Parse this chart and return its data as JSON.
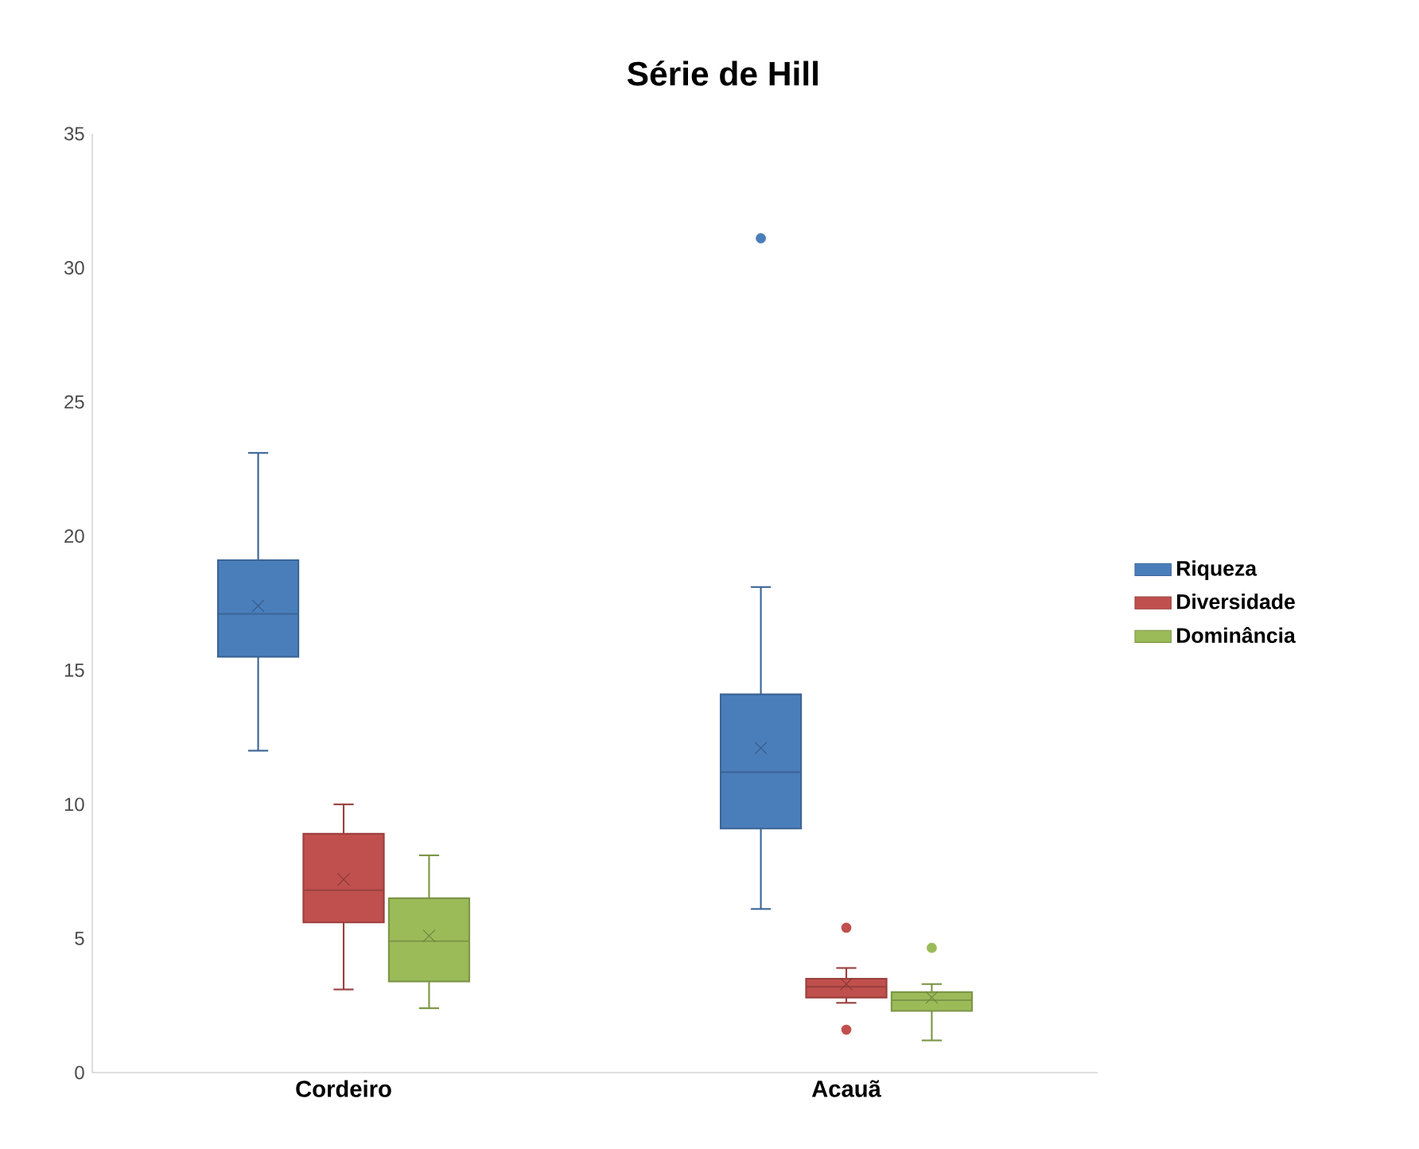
{
  "chart_data": {
    "type": "box",
    "title": "Série de Hill",
    "categories": [
      "Cordeiro",
      "Acauã"
    ],
    "series": [
      {
        "name": "Riqueza",
        "color": "#4a7ebb",
        "boxes": [
          {
            "low": 12,
            "q1": 15.5,
            "median": 17.1,
            "q3": 19.1,
            "high": 23.1,
            "mean": 17.4
          },
          {
            "low": 6.1,
            "q1": 9.1,
            "median": 11.2,
            "q3": 14.1,
            "high": 18.1,
            "mean": 12.1,
            "outliers": [
              31.1
            ]
          }
        ]
      },
      {
        "name": "Diversidade",
        "color": "#c0504d",
        "boxes": [
          {
            "low": 3.1,
            "q1": 5.6,
            "median": 6.8,
            "q3": 8.9,
            "high": 10,
            "mean": 7.2
          },
          {
            "low": 2.6,
            "q1": 2.8,
            "median": 3.2,
            "q3": 3.5,
            "high": 3.9,
            "mean": 3.3,
            "outliers": [
              5.4,
              1.6
            ]
          }
        ]
      },
      {
        "name": "Dominância",
        "color": "#9bbb59",
        "boxes": [
          {
            "low": 2.4,
            "q1": 3.4,
            "median": 4.9,
            "q3": 6.5,
            "high": 8.1,
            "mean": 5.1
          },
          {
            "low": 1.2,
            "q1": 2.3,
            "median": 2.7,
            "q3": 3.0,
            "high": 3.3,
            "mean": 2.8,
            "outliers": [
              4.65
            ]
          }
        ]
      }
    ],
    "ylim": [
      0,
      35
    ],
    "yticks": [
      0,
      5,
      10,
      15,
      20,
      25,
      30,
      35
    ],
    "grid": false,
    "legend": "right"
  }
}
